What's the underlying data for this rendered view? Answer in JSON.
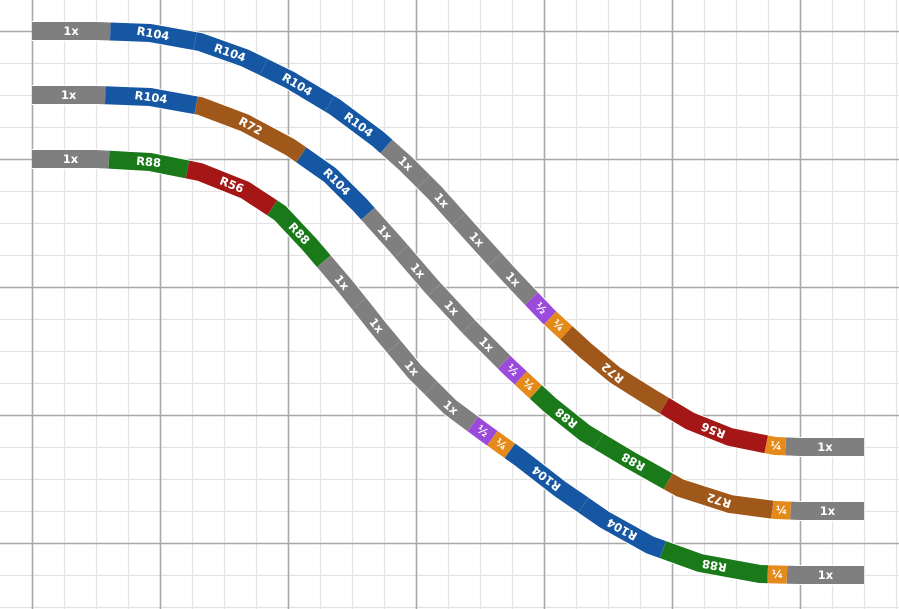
{
  "colors": {
    "background": "#ffffff",
    "grid_minor": "#e3e3e3",
    "grid_major": "#a9a9a9",
    "straight": "#7f7f7f",
    "R104": "#1657a3",
    "R72": "#a0581a",
    "R88": "#1a7a1a",
    "R56": "#a51717",
    "half": "#9b4bdc",
    "quarter": "#e38a1a",
    "text": "#ffffff"
  },
  "tracks": [
    {
      "id": "track-1",
      "segments": [
        {
          "kind": "straight",
          "label": "1x"
        },
        {
          "kind": "R104",
          "label": "R104"
        },
        {
          "kind": "R104",
          "label": "R104"
        },
        {
          "kind": "R104",
          "label": "R104"
        },
        {
          "kind": "R104",
          "label": "R104"
        },
        {
          "kind": "straight",
          "label": "1x"
        },
        {
          "kind": "straight",
          "label": "1x"
        },
        {
          "kind": "straight",
          "label": "1x"
        },
        {
          "kind": "straight",
          "label": "1x"
        },
        {
          "kind": "half",
          "label": "½"
        },
        {
          "kind": "quarter",
          "label": "¼"
        },
        {
          "kind": "R72",
          "label": "R72"
        },
        {
          "kind": "R56",
          "label": "R56"
        },
        {
          "kind": "quarter",
          "label": "¼"
        },
        {
          "kind": "straight",
          "label": "1x"
        }
      ]
    },
    {
      "id": "track-2",
      "segments": [
        {
          "kind": "straight",
          "label": "1x"
        },
        {
          "kind": "R104",
          "label": "R104"
        },
        {
          "kind": "R72",
          "label": "R72"
        },
        {
          "kind": "R104",
          "label": "R104"
        },
        {
          "kind": "straight",
          "label": "1x"
        },
        {
          "kind": "straight",
          "label": "1x"
        },
        {
          "kind": "straight",
          "label": "1x"
        },
        {
          "kind": "straight",
          "label": "1x"
        },
        {
          "kind": "half",
          "label": "½"
        },
        {
          "kind": "quarter",
          "label": "¼"
        },
        {
          "kind": "R88",
          "label": "R88"
        },
        {
          "kind": "R88",
          "label": "R88"
        },
        {
          "kind": "R72",
          "label": "R72"
        },
        {
          "kind": "quarter",
          "label": "¼"
        },
        {
          "kind": "straight",
          "label": "1x"
        }
      ]
    },
    {
      "id": "track-3",
      "segments": [
        {
          "kind": "straight",
          "label": "1x"
        },
        {
          "kind": "R88",
          "label": "R88"
        },
        {
          "kind": "R56",
          "label": "R56"
        },
        {
          "kind": "R88",
          "label": "R88"
        },
        {
          "kind": "straight",
          "label": "1x"
        },
        {
          "kind": "straight",
          "label": "1x"
        },
        {
          "kind": "straight",
          "label": "1x"
        },
        {
          "kind": "straight",
          "label": "1x"
        },
        {
          "kind": "half",
          "label": "½"
        },
        {
          "kind": "quarter",
          "label": "¼"
        },
        {
          "kind": "R104",
          "label": "R104"
        },
        {
          "kind": "R104",
          "label": "R104"
        },
        {
          "kind": "R88",
          "label": "R88"
        },
        {
          "kind": "quarter",
          "label": "¼"
        },
        {
          "kind": "straight",
          "label": "1x"
        }
      ]
    }
  ]
}
